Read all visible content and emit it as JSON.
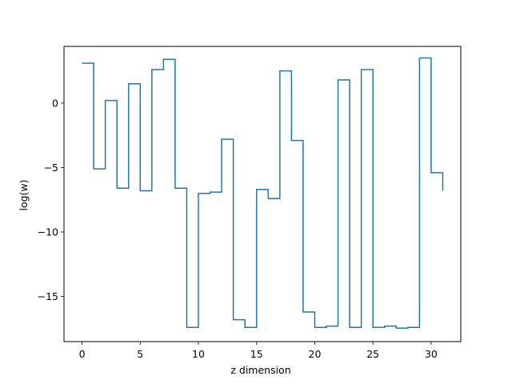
{
  "chart_data": {
    "type": "line",
    "step": "post",
    "title": "",
    "xlabel": "z dimension",
    "ylabel": "log(w)",
    "xlim": [
      -1.55,
      32.55
    ],
    "ylim": [
      -18.5,
      4.4
    ],
    "xticks": [
      0,
      5,
      10,
      15,
      20,
      25,
      30
    ],
    "yticks": [
      -15,
      -10,
      -5,
      0
    ],
    "ytick_labels": [
      "−15",
      "−10",
      "−5",
      "0"
    ],
    "grid": false,
    "legend": "none",
    "series": [
      {
        "color": "#1f77b4",
        "x": [
          0,
          1,
          2,
          3,
          4,
          5,
          6,
          7,
          8,
          9,
          10,
          11,
          12,
          13,
          14,
          15,
          16,
          17,
          18,
          19,
          20,
          21,
          22,
          23,
          24,
          25,
          26,
          27,
          28,
          29,
          30,
          31
        ],
        "y": [
          3.1,
          -5.1,
          0.2,
          -6.6,
          1.5,
          -6.8,
          2.6,
          3.4,
          -6.6,
          -17.4,
          -7.0,
          -6.9,
          -2.8,
          -16.8,
          -17.4,
          -6.7,
          -7.4,
          2.5,
          -2.9,
          -16.2,
          -17.4,
          -17.3,
          1.8,
          -17.4,
          2.6,
          -17.4,
          -17.3,
          -17.45,
          -17.4,
          3.5,
          -5.4,
          -6.8
        ]
      }
    ]
  }
}
